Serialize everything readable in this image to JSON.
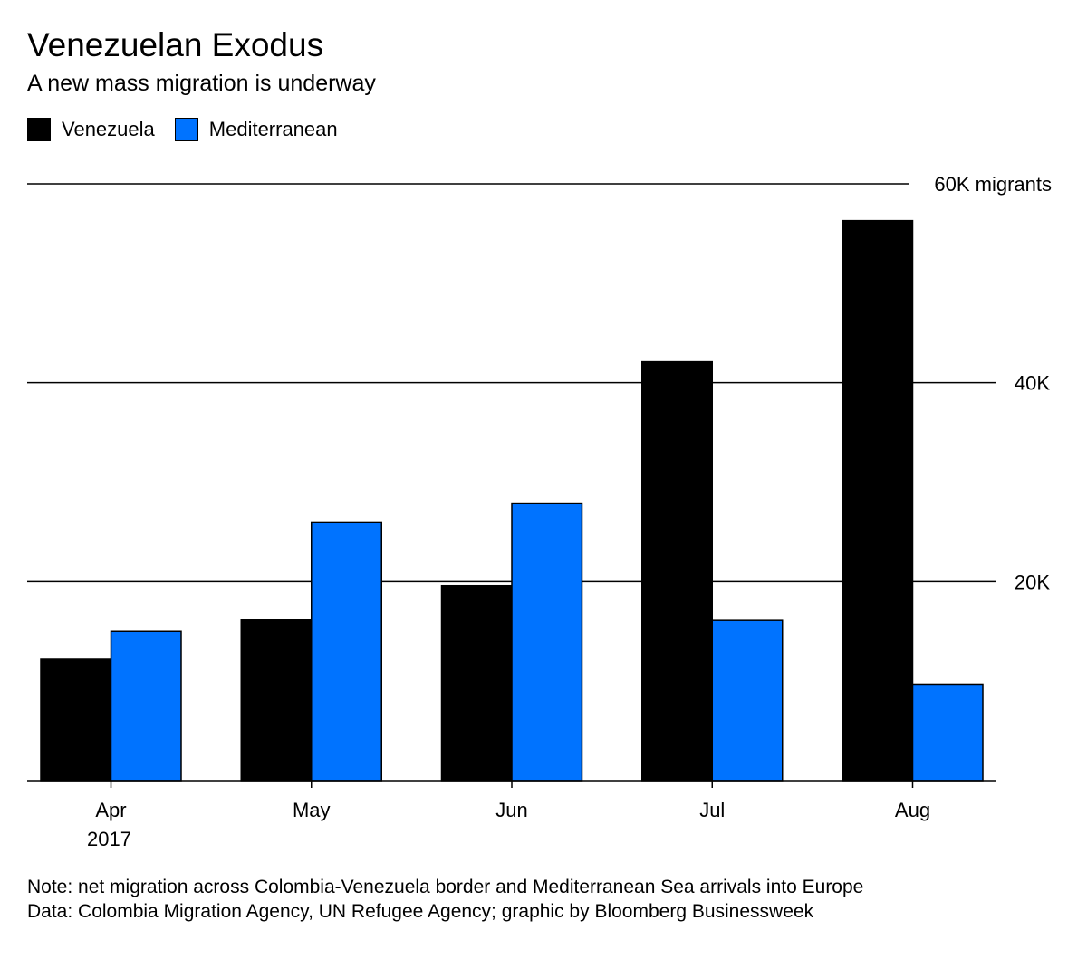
{
  "chart_data": {
    "type": "bar",
    "title": "Venezuelan Exodus",
    "subtitle": "A new mass migration is underway",
    "categories": [
      "Apr",
      "May",
      "Jun",
      "Jul",
      "Aug"
    ],
    "category_sublabels": [
      "2017",
      "",
      "",
      "",
      ""
    ],
    "series": [
      {
        "name": "Venezuela",
        "color": "#000000",
        "values": [
          12200,
          16200,
          19600,
          42100,
          56300
        ]
      },
      {
        "name": "Mediterranean",
        "color": "#0073ff",
        "values": [
          15000,
          26000,
          27900,
          16100,
          9700
        ]
      }
    ],
    "y_ticks": [
      {
        "value": 60000,
        "label": "60K migrants"
      },
      {
        "value": 40000,
        "label": "40K"
      },
      {
        "value": 20000,
        "label": "20K"
      }
    ],
    "ylim": [
      0,
      60000
    ],
    "xlabel": "",
    "ylabel": "",
    "legend_position": "top-left",
    "grid": true
  },
  "notes": {
    "note": "Note: net migration across Colombia-Venezuela border and Mediterranean Sea arrivals into Europe",
    "source": "Data: Colombia Migration Agency, UN Refugee Agency; graphic by Bloomberg Businessweek"
  }
}
